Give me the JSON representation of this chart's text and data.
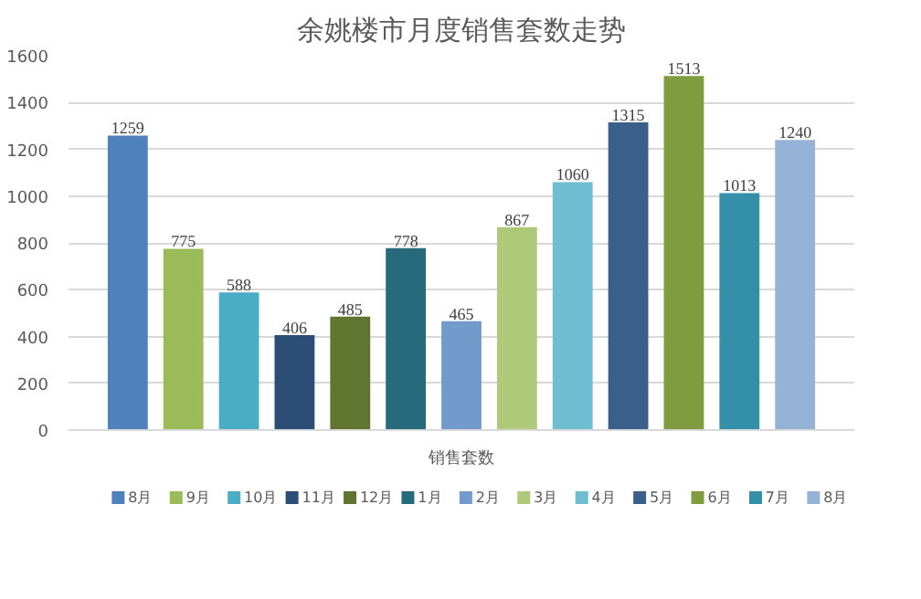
{
  "chart_data": {
    "type": "bar",
    "title": "余姚楼市月度销售套数走势",
    "categories": [
      "销售套数"
    ],
    "series": [
      {
        "name": "8月",
        "color": "#4f81bd",
        "values": [
          1259
        ]
      },
      {
        "name": "9月",
        "color": "#9bbb59",
        "values": [
          775
        ]
      },
      {
        "name": "10月",
        "color": "#4bacc6",
        "values": [
          588
        ]
      },
      {
        "name": "11月",
        "color": "#2c4d75",
        "values": [
          406
        ]
      },
      {
        "name": "12月",
        "color": "#5f7530",
        "values": [
          485
        ]
      },
      {
        "name": "1月",
        "color": "#276a7c",
        "values": [
          778
        ]
      },
      {
        "name": "2月",
        "color": "#729aca",
        "values": [
          465
        ]
      },
      {
        "name": "3月",
        "color": "#afc97a",
        "values": [
          867
        ]
      },
      {
        "name": "4月",
        "color": "#6fbdd1",
        "values": [
          1060
        ]
      },
      {
        "name": "5月",
        "color": "#3a5f8b",
        "values": [
          1315
        ]
      },
      {
        "name": "6月",
        "color": "#7f9c3e",
        "values": [
          1513
        ]
      },
      {
        "name": "7月",
        "color": "#3490a8",
        "values": [
          1013
        ]
      },
      {
        "name": "8月",
        "color": "#95b3d7",
        "values": [
          1240
        ]
      }
    ],
    "ylim": [
      0,
      1600
    ],
    "yticks": [
      0,
      200,
      400,
      600,
      800,
      1000,
      1200,
      1400,
      1600
    ],
    "grid": "y",
    "legend": "bottom",
    "data_labels": true
  }
}
